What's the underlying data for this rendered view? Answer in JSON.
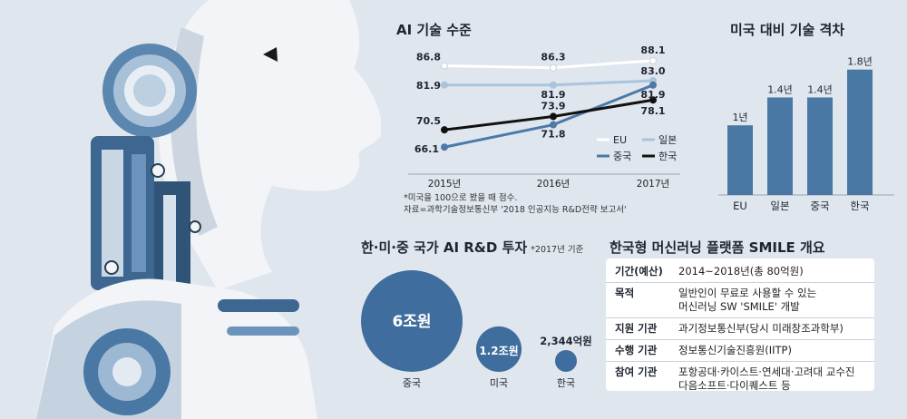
{
  "line_chart": {
    "type": "line",
    "title": "AI 기술 수준",
    "x": [
      "2015년",
      "2016년",
      "2017년"
    ],
    "ylim": [
      62,
      92
    ],
    "series": [
      {
        "name": "EU",
        "values": [
          86.8,
          86.3,
          88.1
        ],
        "color": "#ffffff",
        "labels": [
          "86.8",
          "86.3",
          "88.1"
        ]
      },
      {
        "name": "일본",
        "values": [
          81.9,
          81.9,
          83.0
        ],
        "color": "#a9c4dc",
        "labels": [
          "81.9",
          "81.9",
          "83.0"
        ]
      },
      {
        "name": "중국",
        "values": [
          66.1,
          71.8,
          81.9
        ],
        "color": "#4c79a6",
        "labels": [
          "66.1",
          "71.8",
          "81.9"
        ]
      },
      {
        "name": "한국",
        "values": [
          70.5,
          73.9,
          78.1
        ],
        "color": "#111111",
        "labels": [
          "70.5",
          "73.9",
          "78.1"
        ]
      }
    ],
    "note": [
      "*미국을 100으로 봤을 때 점수.",
      "자료=과학기술정보통신부 '2018 인공지능 R&D전략 보고서'"
    ]
  },
  "bar_chart": {
    "type": "bar",
    "title": "미국 대비 기술 격차",
    "categories": [
      "EU",
      "일본",
      "중국",
      "한국"
    ],
    "values": [
      1.0,
      1.4,
      1.4,
      1.8
    ],
    "value_labels": [
      "1년",
      "1.4년",
      "1.4년",
      "1.8년"
    ],
    "ylim": [
      0,
      2
    ],
    "color": "#4a78a5"
  },
  "bubble_chart": {
    "type": "bubble",
    "title": "한·미·중 국가 AI R&D 투자",
    "title_note": "*2017년 기준",
    "items": [
      {
        "country": "중국",
        "label": "6조원",
        "value": 60000
      },
      {
        "country": "미국",
        "label": "1.2조원",
        "value": 12000
      },
      {
        "country": "한국",
        "label": "2,344억원",
        "value": 2344
      }
    ],
    "color": "#3f6d9d"
  },
  "smile_table": {
    "title": "한국형 머신러닝 플랫폼 SMILE 개요",
    "rows": [
      {
        "key": "기간(예산)",
        "value": [
          "2014~2018년(총 80억원)"
        ]
      },
      {
        "key": "목적",
        "value": [
          "일반인이 무료로 사용할 수 있는",
          "머신러닝 SW 'SMILE' 개발"
        ]
      },
      {
        "key": "지원 기관",
        "value": [
          "과기정보통신부(당시 미래창조과학부)"
        ]
      },
      {
        "key": "수행 기관",
        "value": [
          "정보통신기술진흥원(IITP)"
        ]
      },
      {
        "key": "참여 기관",
        "value": [
          "포항공대·카이스트·연세대·고려대 교수진",
          "다음소프트·다이퀘스트 등"
        ]
      }
    ]
  }
}
